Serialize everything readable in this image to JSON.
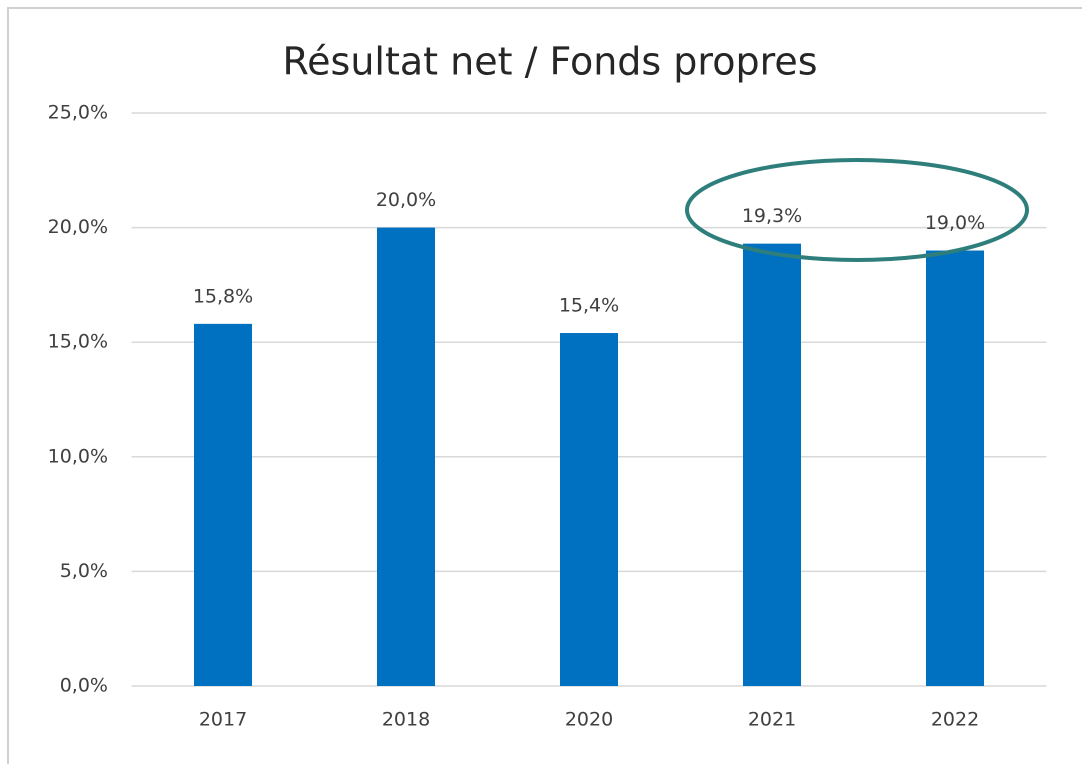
{
  "chart_data": {
    "type": "bar",
    "title": "Résultat net / Fonds propres",
    "categories": [
      "2017",
      "2018",
      "2020",
      "2021",
      "2022"
    ],
    "values": [
      15.8,
      20.0,
      15.4,
      19.3,
      19.0
    ],
    "value_labels": [
      "15,8%",
      "20,0%",
      "15,4%",
      "19,3%",
      "19,0%"
    ],
    "color": "#0070c0",
    "ylim": [
      0,
      25
    ],
    "yticks": [
      {
        "value": 0,
        "label": "0,0%"
      },
      {
        "value": 5,
        "label": "5,0%"
      },
      {
        "value": 10,
        "label": "10,0%"
      },
      {
        "value": 15,
        "label": "15,0%"
      },
      {
        "value": 20,
        "label": "20,0%"
      },
      {
        "value": 25,
        "label": "25,0%"
      }
    ],
    "grid": true
  }
}
